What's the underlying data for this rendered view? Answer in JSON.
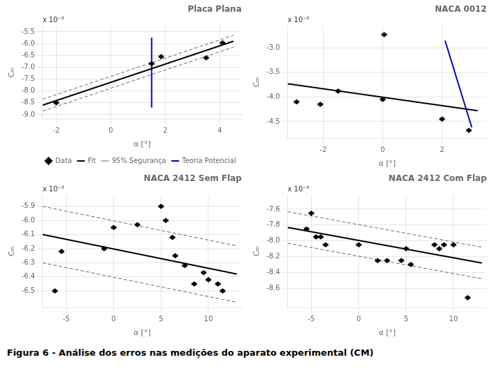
{
  "title": "Figura 6 - Análise dos erros nas medições do aparato experimental (CM)",
  "chart_data": [
    {
      "type": "scatter",
      "title": "Placa Plana",
      "xlabel": "α [°]",
      "ylabel": "Cₘ",
      "annotation": "x 10⁻³",
      "xlim": [
        -2.5,
        4.8
      ],
      "ylim": [
        -9.2,
        -5.25
      ],
      "xticks": [
        -2,
        0,
        2,
        4
      ],
      "yticks": [
        {
          "value": -9,
          "label": "-9.0"
        },
        -8.5,
        {
          "value": -8,
          "label": "-8.0"
        },
        -7.5,
        {
          "value": -7,
          "label": "-7.0"
        },
        -6.5,
        {
          "value": -6,
          "label": "-6.0"
        },
        -5.5
      ],
      "grid": true,
      "legend": "lower right",
      "series": [
        {
          "name": "Data",
          "type": "scatter",
          "marker": "diamond",
          "color": "#000000",
          "x": [
            -2.0,
            1.5,
            1.85,
            3.5,
            4.1
          ],
          "values": [
            -8.5,
            -6.85,
            -6.55,
            -6.6,
            -5.97
          ],
          "xerr": 0.0876,
          "yerr": 0.0354
        },
        {
          "name": "Fit",
          "type": "line",
          "line_style": "solid",
          "color": "#000000",
          "x": [
            -2.5,
            4.5
          ],
          "values": [
            -8.6,
            -5.9
          ]
        },
        {
          "name": "95% Segurança",
          "type": "line",
          "line_style": "dashed",
          "color": "#666666",
          "x": [
            -2.5,
            4.5,
            null,
            -2.5,
            4.5
          ],
          "values": [
            -8.85,
            -6.15,
            null,
            -8.35,
            -5.65
          ]
        },
        {
          "name": "Teoria Potencial",
          "type": "line",
          "line_style": "solid",
          "color": "#0000bb",
          "x": [
            1.5,
            1.5
          ],
          "values": [
            -8.7,
            -5.75
          ]
        }
      ]
    },
    {
      "type": "scatter",
      "title": "NACA 0012",
      "xlabel": "α [°]",
      "ylabel": "Cₘ",
      "annotation": "x 10⁻³",
      "xlim": [
        -3.2,
        3.5
      ],
      "ylim": [
        -4.85,
        -2.55
      ],
      "xticks": [
        -2,
        0,
        2
      ],
      "yticks": [
        -4.5,
        {
          "value": -4,
          "label": "-4.0"
        },
        -3.5,
        {
          "value": -3,
          "label": "-3.0"
        }
      ],
      "grid": true,
      "series": [
        {
          "type": "scatter",
          "marker": "diamond",
          "color": "#000000",
          "x": [
            -2.9,
            -2.1,
            -1.5,
            0.0,
            0.05,
            2.0,
            2.9
          ],
          "values": [
            -4.1,
            -4.15,
            -3.88,
            -4.05,
            -2.73,
            -4.45,
            -4.68
          ],
          "xerr": 0.0804,
          "yerr": 0.0276
        },
        {
          "type": "line",
          "line_style": "solid",
          "color": "#000000",
          "x": [
            -3.2,
            3.2
          ],
          "values": [
            -3.73,
            -4.28
          ]
        },
        {
          "type": "line",
          "line_style": "solid",
          "color": "#0000bb",
          "x": [
            2.1,
            3.0
          ],
          "values": [
            -2.85,
            -4.62
          ]
        }
      ]
    },
    {
      "type": "scatter",
      "title": "NACA 2412 Sem Flap",
      "xlabel": "α [°]",
      "ylabel": "Cₘ",
      "annotation": "x 10⁻³",
      "xlim": [
        -7.5,
        13.5
      ],
      "ylim": [
        -6.62,
        -5.82
      ],
      "xticks": [
        -5,
        0,
        5,
        10
      ],
      "yticks": [
        -6.5,
        -6.4,
        -6.3,
        -6.2,
        -6.1,
        {
          "value": -6,
          "label": "-6.0"
        },
        -5.9
      ],
      "grid": true,
      "series": [
        {
          "type": "scatter",
          "marker": "diamond",
          "color": "#000000",
          "x": [
            -6.2,
            -5.5,
            -1.0,
            0.0,
            2.5,
            5.0,
            5.5,
            6.2,
            6.5,
            7.5,
            8.5,
            9.5,
            10.0,
            11.0,
            11.5
          ],
          "values": [
            -6.5,
            -6.22,
            -6.2,
            -6.05,
            -6.03,
            -5.9,
            -6.0,
            -6.12,
            -6.25,
            -6.32,
            -6.45,
            -6.37,
            -6.42,
            -6.45,
            -6.5
          ],
          "xerr": 0.252,
          "yerr": 0.0096
        },
        {
          "type": "line",
          "line_style": "solid",
          "color": "#000000",
          "x": [
            -7.5,
            13.0
          ],
          "values": [
            -6.1,
            -6.38
          ]
        },
        {
          "type": "line",
          "line_style": "dashed",
          "color": "#666666",
          "x": [
            -7.5,
            13.0,
            null,
            -7.5,
            13.0
          ],
          "values": [
            -5.9,
            -6.18,
            null,
            -6.3,
            -6.58
          ]
        }
      ]
    },
    {
      "type": "scatter",
      "title": "NACA 2412 Com Flap",
      "xlabel": "α [°]",
      "ylabel": "Cₘ",
      "annotation": "x 10⁻³",
      "xlim": [
        -7.5,
        13.5
      ],
      "ylim": [
        -8.85,
        -7.42
      ],
      "xticks": [
        -5,
        0,
        5,
        10
      ],
      "yticks": [
        -8.6,
        -8.4,
        -8.2,
        {
          "value": -8,
          "label": "-8.0"
        },
        -7.8,
        -7.6
      ],
      "grid": true,
      "series": [
        {
          "type": "scatter",
          "marker": "diamond",
          "color": "#000000",
          "x": [
            -5.5,
            -5.0,
            -4.5,
            -4.0,
            -3.5,
            0.0,
            2.0,
            3.0,
            4.5,
            5.0,
            5.5,
            8.0,
            8.5,
            9.0,
            10.0,
            11.5
          ],
          "values": [
            -7.85,
            -7.65,
            -7.95,
            -7.95,
            -8.05,
            -8.05,
            -8.25,
            -8.25,
            -8.25,
            -8.1,
            -8.3,
            -8.05,
            -8.1,
            -8.05,
            -8.05,
            -8.72
          ],
          "xerr": 0.252,
          "yerr": 0.01716
        },
        {
          "type": "line",
          "line_style": "solid",
          "color": "#000000",
          "x": [
            -7.5,
            13.0
          ],
          "values": [
            -7.83,
            -8.28
          ]
        },
        {
          "type": "line",
          "line_style": "dashed",
          "color": "#666666",
          "x": [
            -7.5,
            13.0,
            null,
            -7.5,
            13.0
          ],
          "values": [
            -7.63,
            -8.08,
            null,
            -8.03,
            -8.48
          ]
        }
      ]
    }
  ]
}
